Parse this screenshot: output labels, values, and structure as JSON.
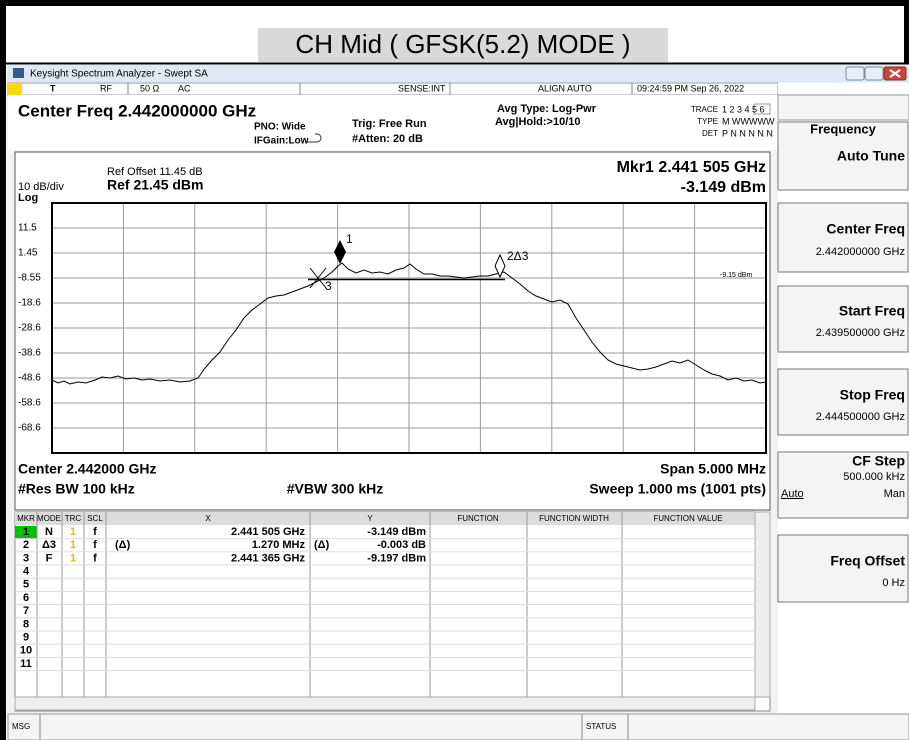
{
  "page_title": "CH Mid ( GFSK(5.2) MODE )",
  "window": {
    "title": "Keysight Spectrum Analyzer - Swept SA"
  },
  "status_bar": {
    "mode": "T",
    "rf": "RF",
    "impedance": "50 Ω",
    "coupling": "AC",
    "sense": "SENSE:INT",
    "align": "ALIGN AUTO",
    "datetime": "09:24:59 PM Sep 26, 2022"
  },
  "header": {
    "center_freq": "Center Freq 2.442000000 GHz",
    "pno": "PNO: Wide",
    "ifgain": "IFGain:Low",
    "trig": "Trig: Free Run",
    "atten": "#Atten: 20 dB",
    "avg_type": "Avg Type: Log-Pwr",
    "avg_hold": "Avg|Hold:>10/10",
    "trace_label": "TRACE",
    "trace_values": "1 2 3 4 5 6",
    "type_label": "TYPE",
    "type_values": "M WWWWW",
    "det_label": "DET",
    "det_values": "P N N N N N"
  },
  "graph": {
    "ref_offset": "Ref Offset 11.45 dB",
    "scale": "10 dB/div",
    "ref_level": "Ref 21.45 dBm",
    "log": "Log",
    "marker_readout": "Mkr1 2.441 505 GHz",
    "marker_value": "-3.149 dBm",
    "y_labels": [
      "11.5",
      "1.45",
      "-8.55",
      "-18.6",
      "-28.6",
      "-38.6",
      "-48.6",
      "-58.6",
      "-68.6"
    ],
    "markers": [
      "1",
      "2Δ3",
      "3"
    ],
    "line_label": "-9.15 dBm",
    "center": "Center 2.442000 GHz",
    "span": "Span 5.000 MHz",
    "rbw": "#Res BW 100 kHz",
    "vbw": "#VBW 300 kHz",
    "sweep": "Sweep  1.000 ms (1001 pts)"
  },
  "marker_table": {
    "columns": [
      "MKR",
      "MODE",
      "TRC",
      "SCL",
      "X",
      "Y",
      "FUNCTION",
      "FUNCTION WIDTH",
      "FUNCTION VALUE"
    ],
    "rows": [
      {
        "mkr": "1",
        "mode": "N",
        "trc": "1",
        "scl": "f",
        "x": "2.441 505 GHz",
        "y": "-3.149 dBm"
      },
      {
        "mkr": "2",
        "mode": "Δ3",
        "trc": "1",
        "scl": "f",
        "x_ref": "(Δ)",
        "x": "1.270 MHz",
        "y_ref": "(Δ)",
        "y": "-0.003 dB"
      },
      {
        "mkr": "3",
        "mode": "F",
        "trc": "1",
        "scl": "f",
        "x": "2.441 365 GHz",
        "y": "-9.197 dBm"
      },
      {
        "mkr": "4"
      },
      {
        "mkr": "5"
      },
      {
        "mkr": "6"
      },
      {
        "mkr": "7"
      },
      {
        "mkr": "8"
      },
      {
        "mkr": "9"
      },
      {
        "mkr": "10"
      },
      {
        "mkr": "11"
      }
    ]
  },
  "softkeys": {
    "menu": "Frequency",
    "keys": [
      {
        "label": "Auto Tune"
      },
      {
        "label": "Center Freq",
        "value": "2.442000000 GHz"
      },
      {
        "label": "Start Freq",
        "value": "2.439500000 GHz"
      },
      {
        "label": "Stop Freq",
        "value": "2.444500000 GHz"
      },
      {
        "label": "CF Step",
        "value": "500.000 kHz",
        "auto": "Auto",
        "man": "Man"
      },
      {
        "label": "Freq Offset",
        "value": "0 Hz"
      }
    ]
  },
  "bottom": {
    "msg": "MSG",
    "status": "STATUS"
  }
}
